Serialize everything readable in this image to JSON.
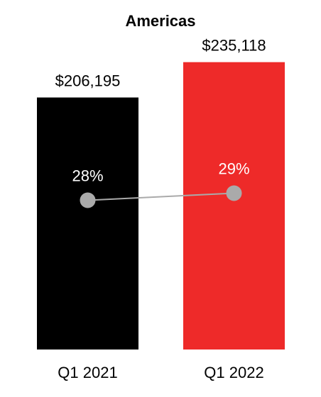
{
  "chart_data": {
    "type": "bar",
    "title": "Americas",
    "categories": [
      "Q1 2021",
      "Q1 2022"
    ],
    "series": [
      {
        "type": "bar",
        "colors": [
          "#000000",
          "#ee2a29"
        ],
        "values": [
          206195,
          235118
        ],
        "value_labels": [
          "$206,195",
          "$235,118"
        ]
      },
      {
        "type": "line",
        "axis": "y2",
        "color": "#aaaaaa",
        "values": [
          28,
          29
        ],
        "value_labels": [
          "28%",
          "29%"
        ]
      }
    ],
    "ylim": [
      0,
      250000
    ],
    "y2lim": [
      7,
      50
    ]
  }
}
